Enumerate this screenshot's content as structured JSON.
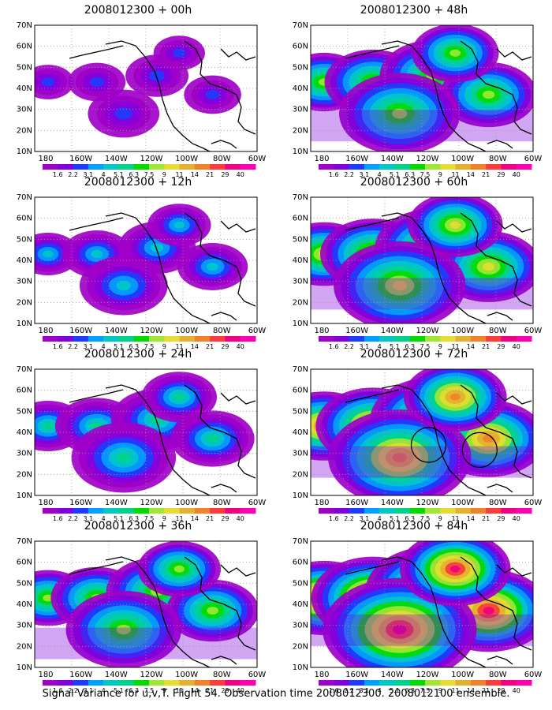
{
  "panels": [
    {
      "title": "2008012300 + 00h",
      "intensity": 0.15,
      "circles": 0
    },
    {
      "title": "2008012300 + 12h",
      "intensity": 0.3,
      "circles": 0
    },
    {
      "title": "2008012300 + 24h",
      "intensity": 0.45,
      "circles": 0
    },
    {
      "title": "2008012300 + 36h",
      "intensity": 0.55,
      "circles": 0
    },
    {
      "title": "2008012300 + 48h",
      "intensity": 0.6,
      "circles": 0
    },
    {
      "title": "2008012300 + 60h",
      "intensity": 0.7,
      "circles": 0
    },
    {
      "title": "2008012300 + 72h",
      "intensity": 0.8,
      "circles": 2
    },
    {
      "title": "2008012300 + 84h",
      "intensity": 0.9,
      "circles": 0
    }
  ],
  "axes": {
    "lat_labels": [
      "70N",
      "60N",
      "50N",
      "40N",
      "30N",
      "20N",
      "10N"
    ],
    "lon_labels": [
      "180",
      "160W",
      "140W",
      "120W",
      "100W",
      "80W",
      "60W"
    ]
  },
  "colorbar": {
    "labels": [
      "1.6",
      "2.2",
      "3.1",
      "4",
      "5.1",
      "6.3",
      "7.5",
      "9",
      "11",
      "14",
      "21",
      "29",
      "40"
    ],
    "colors": [
      "#a000c8",
      "#8200dc",
      "#1e3cff",
      "#00a0ff",
      "#00c8c8",
      "#00d28c",
      "#00dc00",
      "#a0e632",
      "#e6dc32",
      "#e6af2d",
      "#f08228",
      "#fa3c3c",
      "#f00082",
      "#ff00b4"
    ]
  },
  "footer": "Signal Variance for u,v,T. Flight 54. Observation time 2008012300. 2008012100 ensemble."
}
